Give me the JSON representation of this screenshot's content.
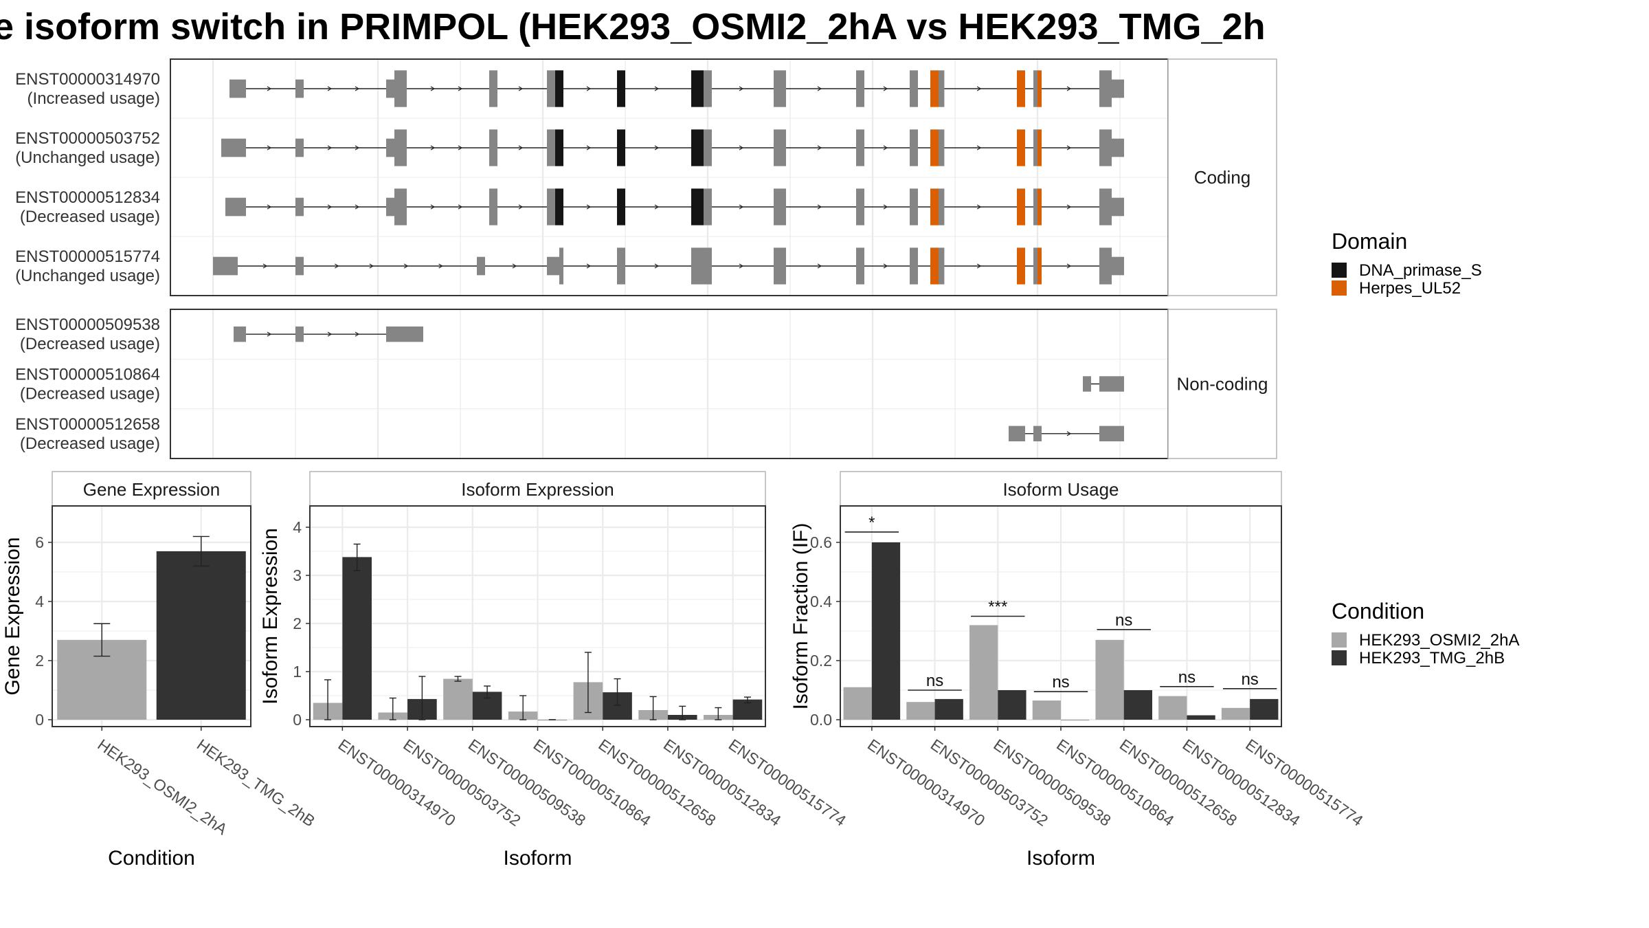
{
  "title": "e isoform switch in PRIMPOL (HEK293_OSMI2_2hA vs HEK293_TMG_2h",
  "colors": {
    "exon": "#858585",
    "dna_primase": "#151515",
    "herpes": "#d95f02",
    "cond_a": "#a8a8a8",
    "cond_b": "#333333",
    "grid": "#ebebeb",
    "strip_bg": "#ffffff"
  },
  "legends": {
    "domain": {
      "title": "Domain",
      "items": [
        {
          "label": "DNA_primase_S",
          "color": "#151515"
        },
        {
          "label": "Herpes_UL52",
          "color": "#d95f02"
        }
      ]
    },
    "condition": {
      "title": "Condition",
      "items": [
        {
          "label": "HEK293_OSMI2_2hA",
          "color": "#a8a8a8"
        },
        {
          "label": "HEK293_TMG_2hB",
          "color": "#333333"
        }
      ]
    }
  },
  "structure": {
    "coding_label": "Coding",
    "noncoding_label": "Non-coding",
    "coding": [
      {
        "id": "ENST00000314970",
        "usage": "(Increased usage)",
        "exons": [
          [
            0.02,
            0.04,
            "exon",
            0.5
          ],
          [
            0.1,
            0.11,
            "exon",
            0.5
          ],
          [
            0.21,
            0.22,
            "exon",
            0.5
          ],
          [
            0.22,
            0.235,
            "exon",
            1
          ],
          [
            0.335,
            0.345,
            "exon",
            1
          ],
          [
            0.405,
            0.415,
            "exon",
            1
          ],
          [
            0.415,
            0.425,
            "dna",
            1
          ],
          [
            0.49,
            0.5,
            "dna",
            1
          ],
          [
            0.58,
            0.595,
            "dna",
            1
          ],
          [
            0.595,
            0.605,
            "exon",
            1
          ],
          [
            0.68,
            0.695,
            "exon",
            1
          ],
          [
            0.78,
            0.79,
            "exon",
            1
          ],
          [
            0.845,
            0.855,
            "exon",
            1
          ],
          [
            0.87,
            0.88,
            "herpes",
            1
          ],
          [
            0.88,
            0.887,
            "exon",
            1
          ],
          [
            0.975,
            0.985,
            "herpes",
            1
          ],
          [
            0.995,
            1.0,
            "exon",
            1
          ],
          [
            1.0,
            1.005,
            "herpes",
            1
          ],
          [
            1.075,
            1.09,
            "exon",
            1
          ],
          [
            1.09,
            1.105,
            "exon",
            0.5
          ]
        ]
      },
      {
        "id": "ENST00000503752",
        "usage": "(Unchanged usage)",
        "exons": [
          [
            0.01,
            0.04,
            "exon",
            0.5
          ],
          [
            0.1,
            0.11,
            "exon",
            0.5
          ],
          [
            0.21,
            0.22,
            "exon",
            0.5
          ],
          [
            0.22,
            0.235,
            "exon",
            1
          ],
          [
            0.335,
            0.345,
            "exon",
            1
          ],
          [
            0.405,
            0.415,
            "exon",
            1
          ],
          [
            0.415,
            0.425,
            "dna",
            1
          ],
          [
            0.49,
            0.5,
            "dna",
            1
          ],
          [
            0.58,
            0.595,
            "dna",
            1
          ],
          [
            0.595,
            0.605,
            "exon",
            1
          ],
          [
            0.68,
            0.695,
            "exon",
            1
          ],
          [
            0.78,
            0.79,
            "exon",
            1
          ],
          [
            0.845,
            0.855,
            "exon",
            1
          ],
          [
            0.87,
            0.88,
            "herpes",
            1
          ],
          [
            0.88,
            0.887,
            "exon",
            1
          ],
          [
            0.975,
            0.985,
            "herpes",
            1
          ],
          [
            0.995,
            1.0,
            "exon",
            1
          ],
          [
            1.0,
            1.005,
            "herpes",
            1
          ],
          [
            1.075,
            1.09,
            "exon",
            1
          ],
          [
            1.09,
            1.105,
            "exon",
            0.5
          ]
        ]
      },
      {
        "id": "ENST00000512834",
        "usage": "(Decreased usage)",
        "exons": [
          [
            0.015,
            0.04,
            "exon",
            0.5
          ],
          [
            0.1,
            0.11,
            "exon",
            0.5
          ],
          [
            0.21,
            0.22,
            "exon",
            0.5
          ],
          [
            0.22,
            0.235,
            "exon",
            1
          ],
          [
            0.335,
            0.345,
            "exon",
            1
          ],
          [
            0.405,
            0.415,
            "exon",
            1
          ],
          [
            0.415,
            0.425,
            "dna",
            1
          ],
          [
            0.49,
            0.5,
            "dna",
            1
          ],
          [
            0.58,
            0.595,
            "dna",
            1
          ],
          [
            0.595,
            0.605,
            "exon",
            1
          ],
          [
            0.68,
            0.695,
            "exon",
            1
          ],
          [
            0.78,
            0.79,
            "exon",
            1
          ],
          [
            0.845,
            0.855,
            "exon",
            1
          ],
          [
            0.87,
            0.88,
            "herpes",
            1
          ],
          [
            0.88,
            0.887,
            "exon",
            1
          ],
          [
            0.975,
            0.985,
            "herpes",
            1
          ],
          [
            0.995,
            1.0,
            "exon",
            1
          ],
          [
            1.0,
            1.005,
            "herpes",
            1
          ],
          [
            1.075,
            1.09,
            "exon",
            1
          ],
          [
            1.09,
            1.105,
            "exon",
            0.5
          ]
        ]
      },
      {
        "id": "ENST00000515774",
        "usage": "(Unchanged usage)",
        "exons": [
          [
            0.0,
            0.03,
            "exon",
            0.5
          ],
          [
            0.1,
            0.11,
            "exon",
            0.5
          ],
          [
            0.32,
            0.33,
            "exon",
            0.5
          ],
          [
            0.405,
            0.42,
            "exon",
            0.5
          ],
          [
            0.42,
            0.425,
            "exon",
            1
          ],
          [
            0.49,
            0.5,
            "exon",
            1
          ],
          [
            0.58,
            0.605,
            "exon",
            1
          ],
          [
            0.68,
            0.695,
            "exon",
            1
          ],
          [
            0.78,
            0.79,
            "exon",
            1
          ],
          [
            0.845,
            0.855,
            "exon",
            1
          ],
          [
            0.87,
            0.88,
            "herpes",
            1
          ],
          [
            0.88,
            0.887,
            "exon",
            1
          ],
          [
            0.975,
            0.985,
            "herpes",
            1
          ],
          [
            0.995,
            1.0,
            "exon",
            1
          ],
          [
            1.0,
            1.005,
            "herpes",
            1
          ],
          [
            1.075,
            1.09,
            "exon",
            1
          ],
          [
            1.09,
            1.105,
            "exon",
            0.5
          ]
        ]
      }
    ],
    "noncoding": [
      {
        "id": "ENST00000509538",
        "usage": "(Decreased usage)",
        "exons": [
          [
            0.025,
            0.04,
            "exon",
            0.5
          ],
          [
            0.1,
            0.11,
            "exon",
            0.5
          ],
          [
            0.21,
            0.255,
            "exon",
            0.5
          ]
        ]
      },
      {
        "id": "ENST00000510864",
        "usage": "(Decreased usage)",
        "exons": [
          [
            1.055,
            1.065,
            "exon",
            0.5
          ],
          [
            1.075,
            1.105,
            "exon",
            0.5
          ]
        ]
      },
      {
        "id": "ENST00000512658",
        "usage": "(Decreased usage)",
        "exons": [
          [
            0.965,
            0.985,
            "exon",
            0.5
          ],
          [
            0.995,
            1.005,
            "exon",
            0.5
          ],
          [
            1.075,
            1.105,
            "exon",
            0.5
          ]
        ]
      }
    ]
  },
  "chart_data": [
    {
      "type": "bar",
      "title": "Gene Expression",
      "xlabel": "Condition",
      "ylabel": "Gene Expression",
      "ylim": [
        0,
        7
      ],
      "yticks": [
        0,
        2,
        4,
        6
      ],
      "categories": [
        "HEK293_OSMI2_2hA",
        "HEK293_TMG_2hB"
      ],
      "values": [
        2.7,
        5.7
      ],
      "errors": [
        [
          2.15,
          3.25
        ],
        [
          5.2,
          6.2
        ]
      ]
    },
    {
      "type": "bar",
      "title": "Isoform Expression",
      "xlabel": "Isoform",
      "ylabel": "Isoform Expression",
      "ylim": [
        0,
        4.3
      ],
      "yticks": [
        0,
        1,
        2,
        3,
        4
      ],
      "categories": [
        "ENST00000314970",
        "ENST00000503752",
        "ENST00000509538",
        "ENST00000510864",
        "ENST00000512658",
        "ENST00000512834",
        "ENST00000515774"
      ],
      "series": [
        {
          "name": "HEK293_OSMI2_2hA",
          "values": [
            0.35,
            0.15,
            0.85,
            0.17,
            0.78,
            0.2,
            0.1
          ],
          "errors": [
            [
              0,
              0.83
            ],
            [
              0,
              0.45
            ],
            [
              0.8,
              0.9
            ],
            [
              0,
              0.5
            ],
            [
              0.15,
              1.4
            ],
            [
              0,
              0.48
            ],
            [
              0,
              0.25
            ]
          ]
        },
        {
          "name": "HEK293_TMG_2hB",
          "values": [
            3.38,
            0.43,
            0.58,
            0.0,
            0.57,
            0.1,
            0.42
          ],
          "errors": [
            [
              3.1,
              3.65
            ],
            [
              0,
              0.9
            ],
            [
              0.45,
              0.7
            ],
            [
              0,
              0
            ],
            [
              0.3,
              0.85
            ],
            [
              0,
              0.28
            ],
            [
              0.35,
              0.47
            ]
          ]
        }
      ]
    },
    {
      "type": "bar",
      "title": "Isoform Usage",
      "xlabel": "Isoform",
      "ylabel": "Isoform Fraction (IF)",
      "ylim": [
        0,
        0.7
      ],
      "yticks": [
        0.0,
        0.2,
        0.4,
        0.6
      ],
      "ytick_labels": [
        "0.0",
        "0.2",
        "0.4",
        "0.6"
      ],
      "categories": [
        "ENST00000314970",
        "ENST00000503752",
        "ENST00000509538",
        "ENST00000510864",
        "ENST00000512658",
        "ENST00000512834",
        "ENST00000515774"
      ],
      "series": [
        {
          "name": "HEK293_OSMI2_2hA",
          "values": [
            0.11,
            0.06,
            0.32,
            0.065,
            0.27,
            0.08,
            0.04
          ]
        },
        {
          "name": "HEK293_TMG_2hB",
          "values": [
            0.6,
            0.07,
            0.1,
            0.0,
            0.1,
            0.015,
            0.07
          ]
        }
      ],
      "significance": [
        "*",
        "ns",
        "***",
        "ns",
        "ns",
        "ns",
        "ns"
      ],
      "sig_heights": [
        0.635,
        0.1,
        0.35,
        0.095,
        0.305,
        0.112,
        0.105
      ]
    }
  ]
}
